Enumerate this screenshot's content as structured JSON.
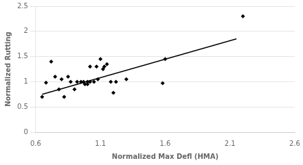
{
  "chart_data": {
    "type": "scatter",
    "xlabel": "Normalized Max Defl (HMA)",
    "ylabel": "Normalized Rutting",
    "series": [
      {
        "type": "scatter",
        "color": "#000000",
        "marker": "diamond",
        "x": [
          0.65,
          0.68,
          0.72,
          0.75,
          0.78,
          0.8,
          0.82,
          0.85,
          0.87,
          0.9,
          0.92,
          0.95,
          0.97,
          0.98,
          1.0,
          1.0,
          1.02,
          1.02,
          1.05,
          1.07,
          1.08,
          1.1,
          1.12,
          1.13,
          1.15,
          1.18,
          1.2,
          1.22,
          1.3,
          1.58,
          1.6,
          2.2
        ],
        "values": [
          0.7,
          0.98,
          1.4,
          1.1,
          0.85,
          1.05,
          0.7,
          1.1,
          1.0,
          0.85,
          1.0,
          1.0,
          1.0,
          0.95,
          1.0,
          0.95,
          1.0,
          1.3,
          1.0,
          1.3,
          1.05,
          1.45,
          1.25,
          1.3,
          1.35,
          1.0,
          0.78,
          1.0,
          1.05,
          0.97,
          1.45,
          2.3
        ]
      },
      {
        "type": "line",
        "color": "#000000",
        "x": [
          0.65,
          2.15
        ],
        "values": [
          0.75,
          1.85
        ]
      }
    ],
    "xlim": [
      0.6,
      2.6
    ],
    "ylim": [
      0,
      2.5
    ],
    "xticks": [
      0.6,
      1.1,
      1.6,
      2.1,
      2.6
    ],
    "yticks": [
      0,
      0.5,
      1,
      1.5,
      2,
      2.5
    ],
    "grid": "y"
  }
}
